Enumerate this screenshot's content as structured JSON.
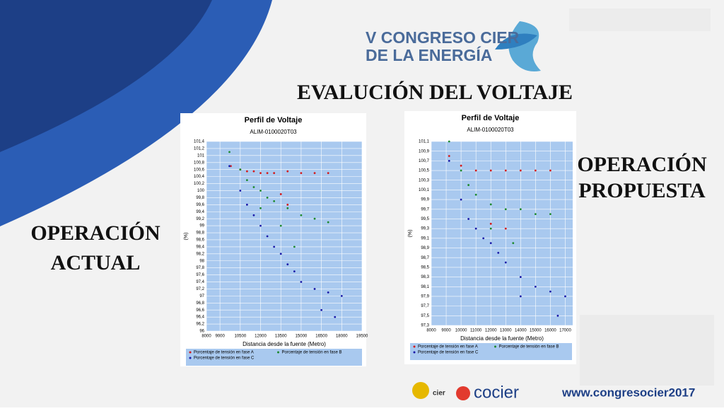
{
  "logo": {
    "line1": "V CONGRESO CIER",
    "line2": "DE LA ENERGÍA"
  },
  "title": "EVALUCIÓN DEL VOLTAJE",
  "left_label": {
    "line1": "OPERACIÓN",
    "line2": "ACTUAL"
  },
  "right_label": {
    "line1": "OPERACIÓN",
    "line2": "PROPUESTA"
  },
  "footer": {
    "cier": "cier",
    "cocier": "cocier",
    "url": "www.congresocier2017"
  },
  "chart_data": [
    {
      "type": "scatter",
      "title": "Perfil de Voltaje",
      "subtitle": "ALIM-0100020T03",
      "y_label": "(%)",
      "x_label": "Distancia desde la fuente (Metro)",
      "grid": true,
      "xlim": [
        8000,
        19500
      ],
      "xticks": [
        8000,
        9000,
        10500,
        12000,
        13500,
        15000,
        16500,
        18000,
        19500
      ],
      "ylim": [
        96,
        101.4
      ],
      "yticks": [
        96,
        {
          "value": 96.2,
          "label": "96,2"
        },
        {
          "value": 96.4,
          "label": "96,4"
        },
        {
          "value": 96.6,
          "label": "96,6"
        },
        {
          "value": 96.8,
          "label": "96,8"
        },
        97,
        {
          "value": 97.2,
          "label": "97,2"
        },
        {
          "value": 97.4,
          "label": "97,4"
        },
        {
          "value": 97.6,
          "label": "97,6"
        },
        {
          "value": 97.8,
          "label": "97,8"
        },
        98,
        {
          "value": 98.2,
          "label": "98,2"
        },
        {
          "value": 98.4,
          "label": "98,4"
        },
        {
          "value": 98.6,
          "label": "98,6"
        },
        {
          "value": 98.8,
          "label": "98,8"
        },
        99,
        {
          "value": 99.2,
          "label": "99,2"
        },
        {
          "value": 99.4,
          "label": "99,4"
        },
        {
          "value": 99.6,
          "label": "99,6"
        },
        {
          "value": 99.8,
          "label": "99,8"
        },
        100,
        {
          "value": 100.2,
          "label": "100,2"
        },
        {
          "value": 100.4,
          "label": "100,4"
        },
        {
          "value": 100.6,
          "label": "100,6"
        },
        {
          "value": 100.8,
          "label": "100,8"
        },
        101,
        {
          "value": 101.2,
          "label": "101,2"
        },
        {
          "value": 101.4,
          "label": "101,4"
        }
      ],
      "series": [
        {
          "name": "Porcentaje de tensión en fase A",
          "color": "#d41c1c",
          "x": [
            9800,
            10500,
            11000,
            11500,
            12000,
            12500,
            13000,
            14000,
            15000,
            16000,
            17000,
            13500,
            14000
          ],
          "values": [
            100.7,
            100.6,
            100.55,
            100.55,
            100.5,
            100.5,
            100.5,
            100.55,
            100.5,
            100.5,
            100.5,
            99.9,
            99.6
          ]
        },
        {
          "name": "Porcentaje de tensión en fase B",
          "color": "#1e8a2e",
          "x": [
            9700,
            10500,
            11000,
            11500,
            12000,
            12500,
            13000,
            14000,
            15000,
            16000,
            17000,
            12000,
            13500,
            14500
          ],
          "values": [
            101.1,
            100.6,
            100.3,
            100.1,
            100.0,
            99.8,
            99.7,
            99.5,
            99.3,
            99.2,
            99.1,
            99.5,
            99.0,
            98.4
          ]
        },
        {
          "name": "Porcentaje de tensión en fase C",
          "color": "#1a1aa8",
          "x": [
            9700,
            10500,
            11000,
            11500,
            12000,
            12500,
            13000,
            13500,
            14000,
            14500,
            15000,
            16000,
            17000,
            18000,
            16500,
            17500
          ],
          "values": [
            100.7,
            100.0,
            99.6,
            99.3,
            99.0,
            98.7,
            98.4,
            98.2,
            97.9,
            97.7,
            97.4,
            97.2,
            97.1,
            97.0,
            96.6,
            96.4
          ]
        }
      ]
    },
    {
      "type": "scatter",
      "title": "Perfil de Voltaje",
      "subtitle": "ALIM-0100020T03",
      "y_label": "(%)",
      "x_label": "Distancia desde la fuente (Metro)",
      "grid": true,
      "xlim": [
        8000,
        17500
      ],
      "xticks": [
        8000,
        9000,
        10000,
        11000,
        12000,
        13000,
        14000,
        15000,
        16000,
        17000
      ],
      "ylim": [
        97.3,
        101.1
      ],
      "yticks": [
        {
          "value": 97.3,
          "label": "97,3"
        },
        {
          "value": 97.5,
          "label": "97,5"
        },
        {
          "value": 97.7,
          "label": "97,7"
        },
        {
          "value": 97.9,
          "label": "97,9"
        },
        {
          "value": 98.1,
          "label": "98,1"
        },
        {
          "value": 98.3,
          "label": "98,3"
        },
        {
          "value": 98.5,
          "label": "98,5"
        },
        {
          "value": 98.7,
          "label": "98,7"
        },
        {
          "value": 98.9,
          "label": "98,9"
        },
        {
          "value": 99.1,
          "label": "99,1"
        },
        {
          "value": 99.3,
          "label": "99,3"
        },
        {
          "value": 99.5,
          "label": "99,5"
        },
        {
          "value": 99.7,
          "label": "99,7"
        },
        {
          "value": 99.9,
          "label": "99,9"
        },
        {
          "value": 100.1,
          "label": "100,1"
        },
        {
          "value": 100.3,
          "label": "100,3"
        },
        {
          "value": 100.5,
          "label": "100,5"
        },
        {
          "value": 100.7,
          "label": "100,7"
        },
        {
          "value": 100.9,
          "label": "100,9"
        },
        {
          "value": 101.1,
          "label": "101,1"
        }
      ],
      "series": [
        {
          "name": "Porcentaje de tensión en fase A",
          "color": "#d41c1c",
          "x": [
            9200,
            10000,
            11000,
            12000,
            13000,
            14000,
            15000,
            16000,
            12000,
            13000
          ],
          "values": [
            100.8,
            100.6,
            100.5,
            100.5,
            100.5,
            100.5,
            100.5,
            100.5,
            99.4,
            99.3
          ]
        },
        {
          "name": "Porcentaje de tensión en fase B",
          "color": "#1e8a2e",
          "x": [
            9200,
            10000,
            10500,
            11000,
            12000,
            13000,
            14000,
            15000,
            16000,
            12000,
            13500
          ],
          "values": [
            101.1,
            100.5,
            100.2,
            100.0,
            99.8,
            99.7,
            99.7,
            99.6,
            99.6,
            99.3,
            99.0
          ]
        },
        {
          "name": "Porcentaje de tensión en fase C",
          "color": "#1a1aa8",
          "x": [
            9200,
            10000,
            10500,
            11000,
            11500,
            12000,
            12500,
            13000,
            14000,
            15000,
            16000,
            17000,
            14000,
            16500
          ],
          "values": [
            100.7,
            99.9,
            99.5,
            99.3,
            99.1,
            99.0,
            98.8,
            98.6,
            98.3,
            98.1,
            98.0,
            97.9,
            97.9,
            97.5
          ]
        }
      ]
    }
  ]
}
